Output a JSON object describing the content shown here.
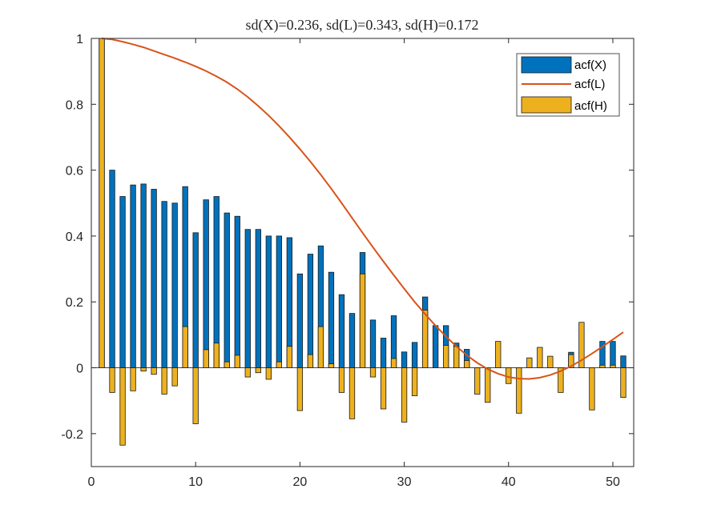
{
  "chart_data": {
    "type": "bar",
    "title": "sd(X)=0.236, sd(L)=0.343, sd(H)=0.172",
    "xlabel": "",
    "ylabel": "",
    "xlim": [
      0,
      52
    ],
    "ylim": [
      -0.3,
      1
    ],
    "xticks": [
      "0",
      "10",
      "20",
      "30",
      "40",
      "50"
    ],
    "xtick_values": [
      0,
      10,
      20,
      30,
      40,
      50
    ],
    "yticks": [
      "-0.2",
      "0",
      "0.2",
      "0.4",
      "0.6",
      "0.8",
      "1"
    ],
    "ytick_values": [
      -0.2,
      0,
      0.2,
      0.4,
      0.6,
      0.8,
      1
    ],
    "grid": false,
    "legend_position": "top-right",
    "lags": [
      1,
      2,
      3,
      4,
      5,
      6,
      7,
      8,
      9,
      10,
      11,
      12,
      13,
      14,
      15,
      16,
      17,
      18,
      19,
      20,
      21,
      22,
      23,
      24,
      25,
      26,
      27,
      28,
      29,
      30,
      31,
      32,
      33,
      34,
      35,
      36,
      37,
      38,
      39,
      40,
      41,
      42,
      43,
      44,
      45,
      46,
      47,
      48,
      49,
      50,
      51
    ],
    "series": [
      {
        "name": "acf(X)",
        "kind": "bar",
        "color": "#0072BD",
        "values": [
          1.0,
          0.6,
          0.52,
          0.555,
          0.558,
          0.542,
          0.505,
          0.5,
          0.55,
          0.41,
          0.51,
          0.52,
          0.47,
          0.46,
          0.42,
          0.42,
          0.4,
          0.4,
          0.395,
          0.285,
          0.345,
          0.37,
          0.29,
          0.222,
          0.165,
          0.35,
          0.145,
          0.09,
          0.158,
          0.048,
          0.077,
          0.215,
          0.128,
          0.128,
          0.075,
          0.056,
          0.0,
          0.0,
          0.0,
          0.0,
          0.0,
          0.0,
          0.0,
          0.0,
          0.0,
          0.047,
          0.0,
          0.0,
          0.08,
          0.08,
          0.036
        ]
      },
      {
        "name": "acf(L)",
        "kind": "line",
        "color": "#D95319",
        "values": [
          1.0,
          0.997,
          0.99,
          0.982,
          0.973,
          0.962,
          0.951,
          0.94,
          0.928,
          0.915,
          0.901,
          0.885,
          0.867,
          0.846,
          0.822,
          0.795,
          0.766,
          0.734,
          0.7,
          0.664,
          0.626,
          0.586,
          0.544,
          0.5,
          0.455,
          0.41,
          0.366,
          0.323,
          0.281,
          0.24,
          0.2,
          0.163,
          0.128,
          0.095,
          0.065,
          0.038,
          0.015,
          -0.004,
          -0.018,
          -0.028,
          -0.033,
          -0.034,
          -0.03,
          -0.022,
          -0.01,
          0.005,
          0.023,
          0.043,
          0.064,
          0.086,
          0.108
        ]
      },
      {
        "name": "acf(H)",
        "kind": "bar",
        "color": "#EDB120",
        "values": [
          1.0,
          -0.075,
          -0.235,
          -0.07,
          -0.01,
          -0.02,
          -0.08,
          -0.055,
          0.125,
          -0.17,
          0.055,
          0.075,
          0.018,
          0.038,
          -0.028,
          -0.015,
          -0.035,
          0.018,
          0.065,
          -0.13,
          0.04,
          0.125,
          0.012,
          -0.075,
          -0.155,
          0.285,
          -0.028,
          -0.125,
          0.028,
          -0.165,
          -0.085,
          0.175,
          0.0,
          0.068,
          0.065,
          0.022,
          -0.08,
          -0.105,
          0.08,
          -0.048,
          -0.138,
          0.03,
          0.062,
          0.035,
          -0.075,
          0.04,
          0.138,
          -0.128,
          0.008,
          0.008,
          -0.09
        ]
      }
    ]
  }
}
